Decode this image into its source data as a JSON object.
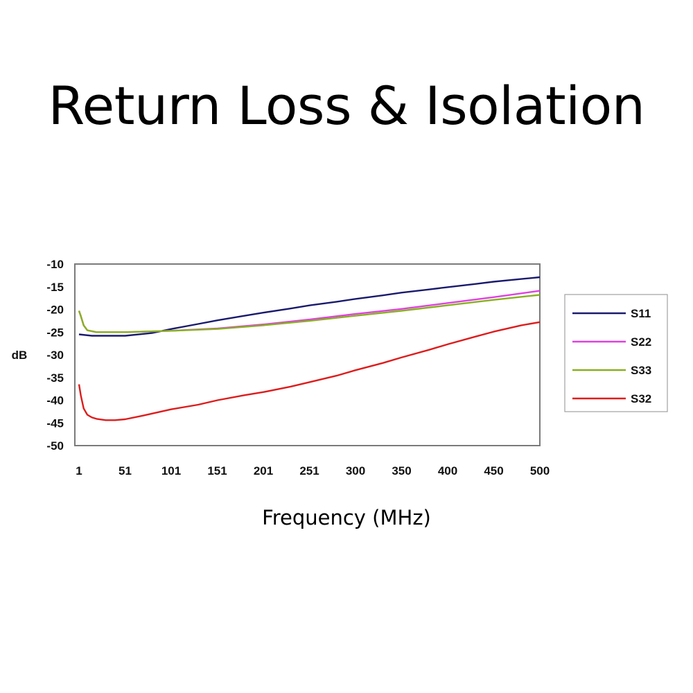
{
  "page": {
    "title": "Return Loss & Isolation"
  },
  "chart_data": {
    "type": "line",
    "title": "Return Loss & Isolation",
    "xlabel": "Frequency (MHz)",
    "ylabel": "dB",
    "x_tick_labels": [
      "1",
      "51",
      "101",
      "151",
      "201",
      "251",
      "300",
      "350",
      "400",
      "450",
      "500"
    ],
    "y_tick_labels": [
      "-10",
      "-15",
      "-20",
      "-25",
      "-30",
      "-35",
      "-40",
      "-45",
      "-50"
    ],
    "y_ticks": [
      -10,
      -15,
      -20,
      -25,
      -30,
      -35,
      -40,
      -45,
      -50
    ],
    "xlim": [
      1,
      500
    ],
    "ylim": [
      -50,
      -10
    ],
    "grid": false,
    "legend_position": "right",
    "series": [
      {
        "name": "S11",
        "color": "#1a1a6e",
        "x": [
          1,
          15,
          30,
          51,
          80,
          101,
          130,
          151,
          180,
          201,
          230,
          251,
          280,
          300,
          330,
          350,
          380,
          400,
          430,
          450,
          480,
          500
        ],
        "y": [
          -25.5,
          -25.8,
          -25.8,
          -25.8,
          -25.2,
          -24.3,
          -23.2,
          -22.4,
          -21.4,
          -20.7,
          -19.8,
          -19.1,
          -18.3,
          -17.7,
          -16.9,
          -16.3,
          -15.6,
          -15.1,
          -14.4,
          -13.9,
          -13.3,
          -12.9
        ]
      },
      {
        "name": "S22",
        "color": "#e040e0",
        "x": [
          1,
          3,
          6,
          10,
          20,
          51,
          101,
          151,
          201,
          251,
          300,
          350,
          400,
          450,
          500
        ],
        "y": [
          -20.3,
          -21.5,
          -23.5,
          -24.6,
          -25.0,
          -25.0,
          -24.7,
          -24.2,
          -23.3,
          -22.2,
          -21.0,
          -19.9,
          -18.6,
          -17.3,
          -15.9
        ]
      },
      {
        "name": "S33",
        "color": "#88b020",
        "x": [
          1,
          3,
          6,
          10,
          20,
          51,
          101,
          151,
          201,
          251,
          300,
          350,
          400,
          450,
          500
        ],
        "y": [
          -20.3,
          -21.5,
          -23.5,
          -24.6,
          -25.0,
          -25.0,
          -24.7,
          -24.3,
          -23.5,
          -22.5,
          -21.4,
          -20.3,
          -19.1,
          -17.9,
          -16.8
        ]
      },
      {
        "name": "S32",
        "color": "#dd1c1c",
        "x": [
          1,
          3,
          6,
          10,
          15,
          20,
          30,
          40,
          51,
          70,
          101,
          130,
          151,
          180,
          201,
          230,
          251,
          280,
          300,
          330,
          350,
          380,
          400,
          430,
          450,
          480,
          500
        ],
        "y": [
          -36.5,
          -39.0,
          -41.8,
          -43.2,
          -43.8,
          -44.1,
          -44.4,
          -44.4,
          -44.2,
          -43.4,
          -42.0,
          -41.0,
          -40.0,
          -38.9,
          -38.2,
          -37.0,
          -36.0,
          -34.6,
          -33.4,
          -31.8,
          -30.6,
          -28.9,
          -27.7,
          -26.0,
          -24.9,
          -23.5,
          -22.8
        ]
      }
    ]
  }
}
